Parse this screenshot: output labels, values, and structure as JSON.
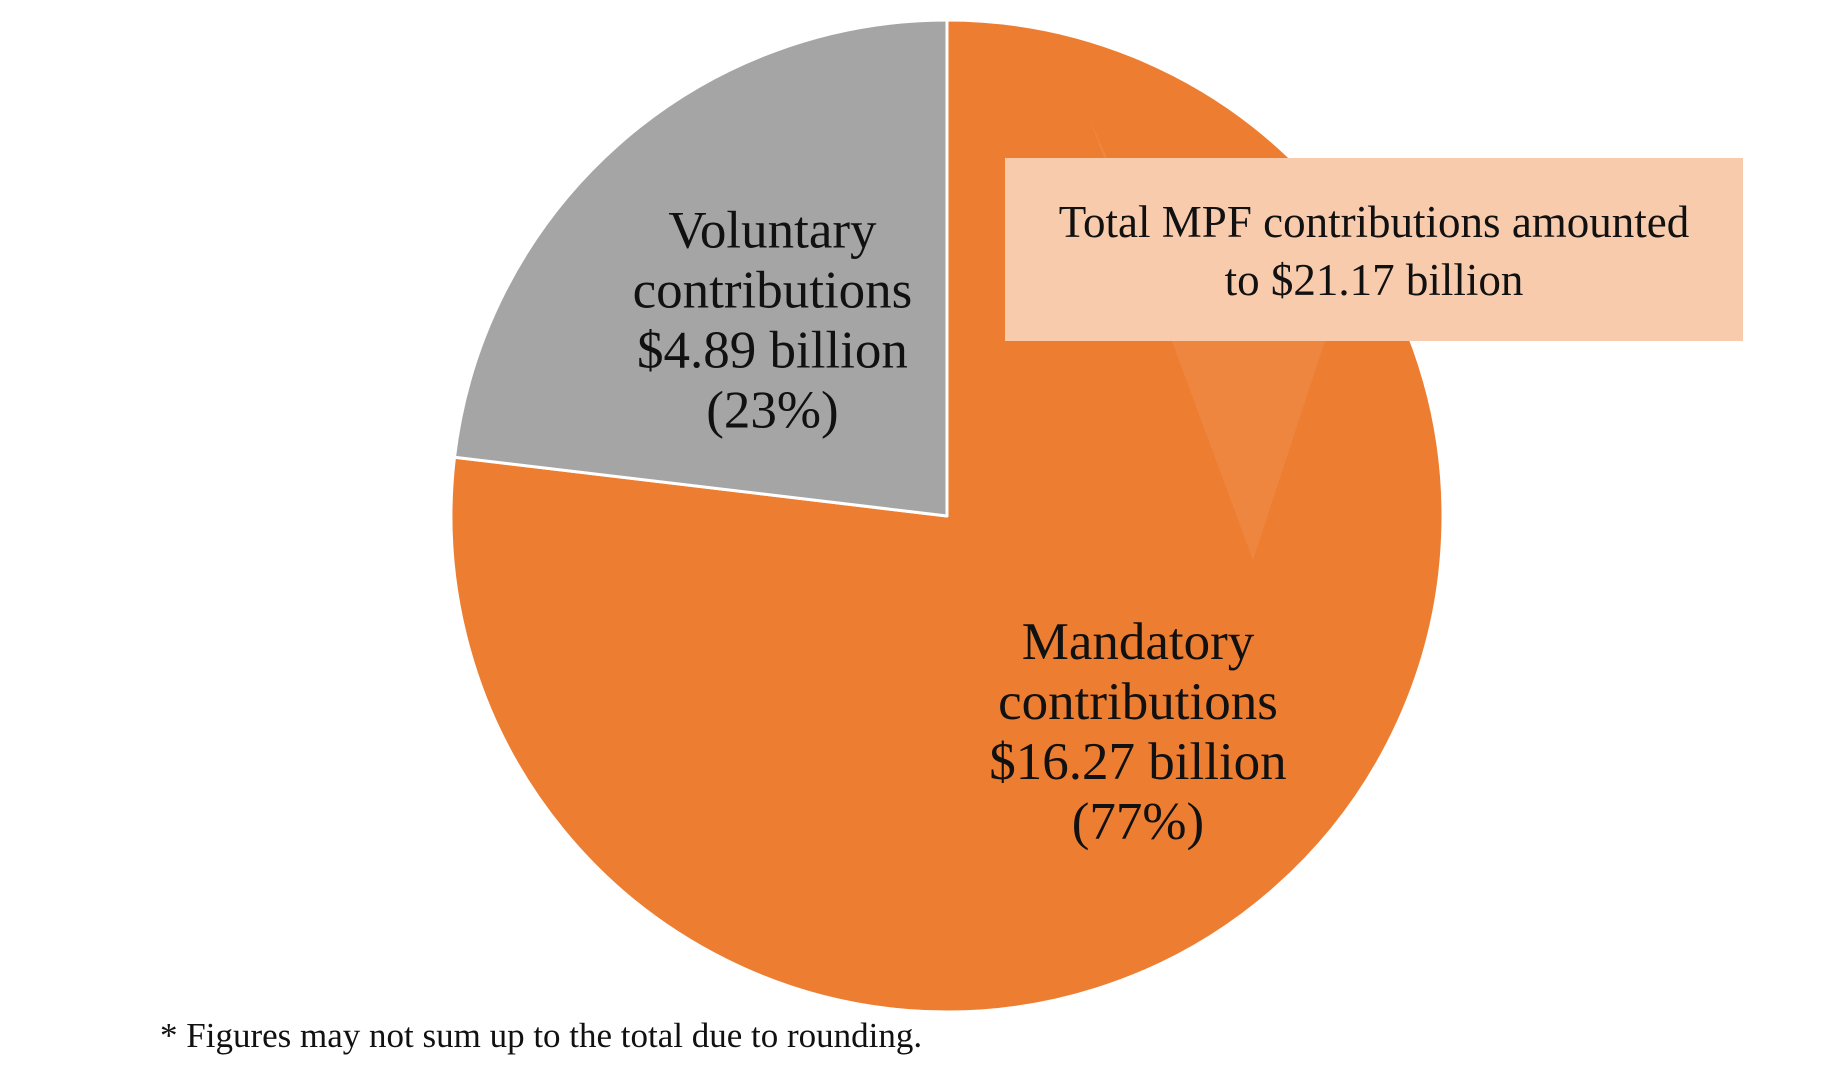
{
  "chart_data": {
    "type": "pie",
    "start_angle_deg": 0,
    "direction": "clockwise",
    "slices": [
      {
        "name": "Mandatory contributions",
        "value": 16.27,
        "unit": "billion",
        "percent": 77,
        "color": "#ED7D31",
        "label_lines": [
          "Mandatory",
          "contributions",
          "$16.27 billion",
          "(77%)"
        ]
      },
      {
        "name": "Voluntary contributions",
        "value": 4.89,
        "unit": "billion",
        "percent": 23,
        "color": "#A5A5A5",
        "label_lines": [
          "Voluntary",
          "contributions",
          "$4.89 billion",
          "(23%)"
        ]
      }
    ],
    "callout": {
      "lines": [
        "Total MPF contributions amounted",
        "to $21.17 billion"
      ],
      "total": 21.17,
      "fill_color": "#F8CBAD",
      "points_to": "Mandatory contributions"
    },
    "footnote": "* Figures may not sum up to the total due to rounding."
  }
}
